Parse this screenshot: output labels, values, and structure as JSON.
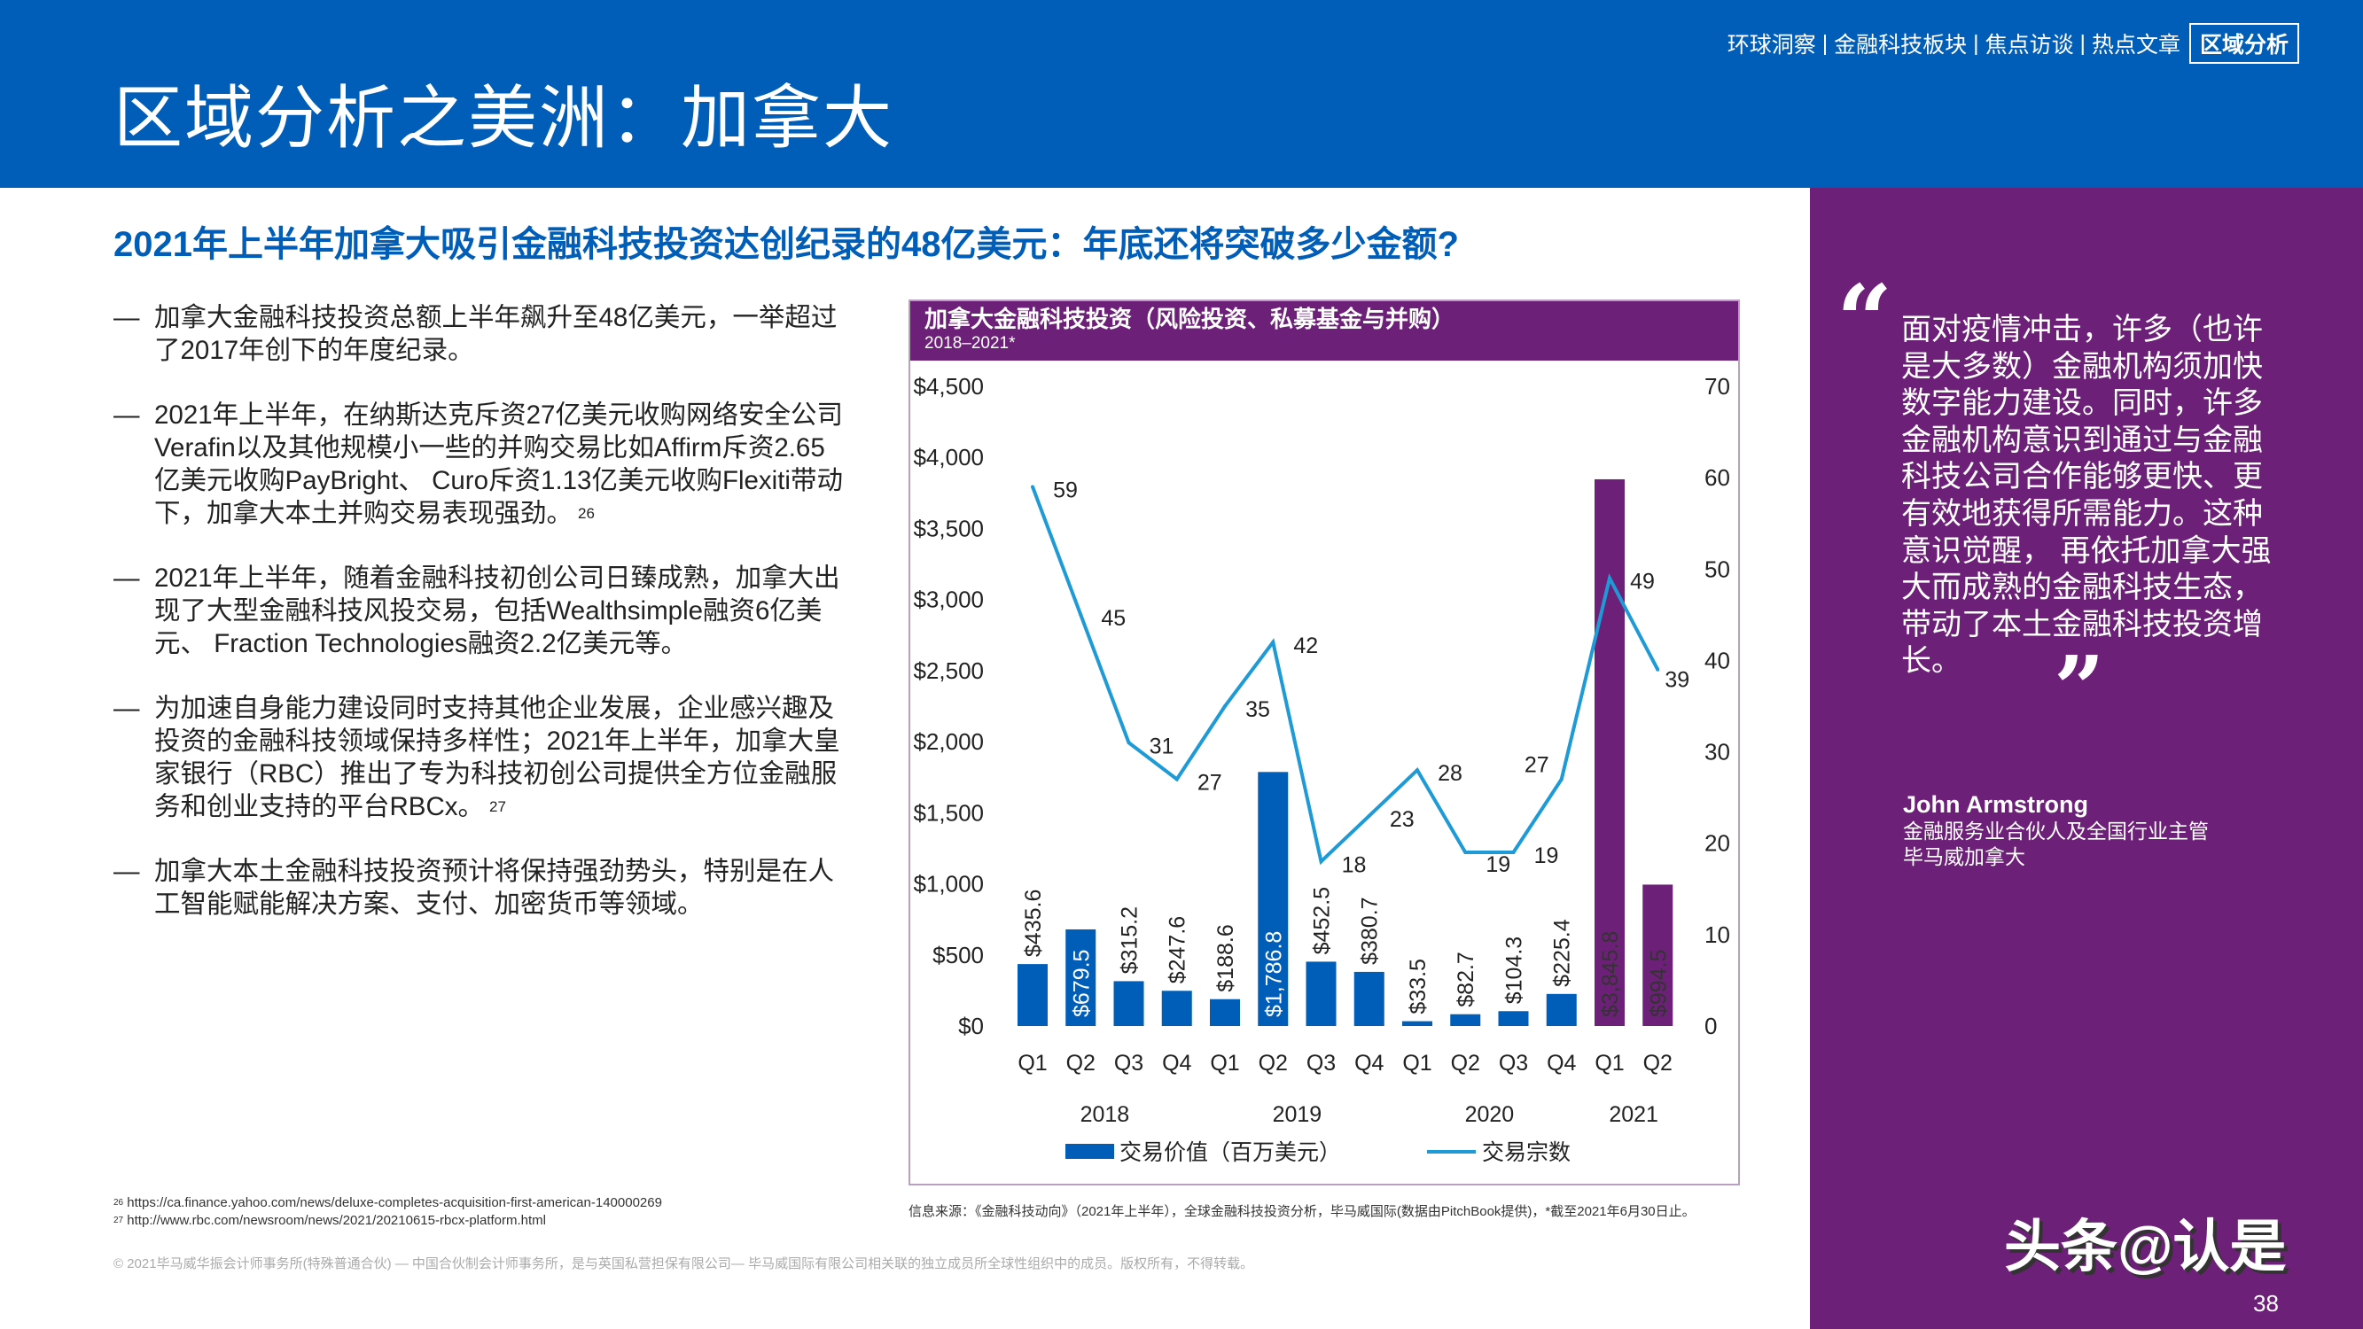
{
  "header": {
    "title": "区域分析之美洲：加拿大",
    "nav": [
      "环球洞察",
      "金融科技板块",
      "焦点访谈",
      "热点文章"
    ],
    "nav_separator": " | ",
    "nav_active": "区域分析"
  },
  "subtitle": "2021年上半年加拿大吸引金融科技投资达创纪录的48亿美元：年底还将突破多少金额?",
  "bullets": [
    {
      "dash": "—",
      "text": "加拿大金融科技投资总额上半年飙升至48亿美元，一举超过了2017年创下的年度纪录。",
      "ref": ""
    },
    {
      "dash": "—",
      "text": "2021年上半年，在纳斯达克斥资27亿美元收购网络安全公司Verafin以及其他规模小一些的并购交易比如Affirm斥资2.65亿美元收购PayBright、 Curo斥资1.13亿美元收购Flexiti带动下，加拿大本土并购交易表现强劲。",
      "ref": "26"
    },
    {
      "dash": "—",
      "text": "2021年上半年，随着金融科技初创公司日臻成熟，加拿大出现了大型金融科技风投交易，包括Wealthsimple融资6亿美元、 Fraction Technologies融资2.2亿美元等。",
      "ref": ""
    },
    {
      "dash": "—",
      "text": "为加速自身能力建设同时支持其他企业发展，企业感兴趣及投资的金融科技领域保持多样性；2021年上半年，加拿大皇家银行（RBC）推出了专为科技初创公司提供全方位金融服务和创业支持的平台RBCx。",
      "ref": "27"
    },
    {
      "dash": "—",
      "text": "加拿大本土金融科技投资预计将保持强劲势头，特别是在人工智能赋能解决方案、支付、加密货币等领域。",
      "ref": ""
    }
  ],
  "chart_data": {
    "type": "bar",
    "title": "加拿大金融科技投资（风险投资、私募基金与并购）",
    "subtitle": "2018–2021*",
    "categories": [
      "Q1",
      "Q2",
      "Q3",
      "Q4",
      "Q1",
      "Q2",
      "Q3",
      "Q4",
      "Q1",
      "Q2",
      "Q3",
      "Q4",
      "Q1",
      "Q2"
    ],
    "years": [
      {
        "label": "2018",
        "from": 0,
        "to": 3
      },
      {
        "label": "2019",
        "from": 4,
        "to": 7
      },
      {
        "label": "2020",
        "from": 8,
        "to": 11
      },
      {
        "label": "2021",
        "from": 12,
        "to": 13
      }
    ],
    "series": [
      {
        "name": "交易价值（百万美元）",
        "type": "bar",
        "axis": "left",
        "values": [
          435.6,
          679.5,
          315.2,
          247.6,
          188.6,
          1786.8,
          452.5,
          380.7,
          33.5,
          82.7,
          104.3,
          225.4,
          3845.8,
          994.5
        ],
        "labels": [
          "$435.6",
          "$679.5",
          "$315.2",
          "$247.6",
          "$188.6",
          "$1,786.8",
          "$452.5",
          "$380.7",
          "$33.5",
          "$82.7",
          "$104.3",
          "$225.4",
          "$3,845.8",
          "$994.5"
        ]
      },
      {
        "name": "交易宗数",
        "type": "line",
        "axis": "right",
        "values": [
          59,
          45,
          31,
          27,
          35,
          42,
          18,
          23,
          28,
          19,
          19,
          27,
          49,
          39
        ]
      }
    ],
    "y_left": {
      "range": [
        0,
        4500
      ],
      "ticks": [
        "$0",
        "$500",
        "$1,000",
        "$1,500",
        "$2,000",
        "$2,500",
        "$3,000",
        "$3,500",
        "$4,000",
        "$4,500"
      ]
    },
    "y_right": {
      "range": [
        0,
        70
      ],
      "ticks": [
        "0",
        "10",
        "20",
        "30",
        "40",
        "50",
        "60",
        "70"
      ]
    },
    "grid": false,
    "legend": "bottom",
    "colors": {
      "bar": "#005eb8",
      "bar_2021": "#6d2077",
      "line": "#1e9ad6"
    }
  },
  "footnotes": [
    {
      "num": "26",
      "text": "https://ca.finance.yahoo.com/news/deluxe-completes-acquisition-first-american-140000269"
    },
    {
      "num": "27",
      "text": "http://www.rbc.com/newsroom/news/2021/20210615-rbcx-platform.html"
    }
  ],
  "source": "信息来源：《金融科技动向》（2021年上半年），全球金融科技投资分析，毕马威国际(数据由PitchBook提供)，*截至2021年6月30日止。",
  "copyright": "© 2021毕马威华振会计师事务所(特殊普通合伙) — 中国合伙制会计师事务所，是与英国私营担保有限公司— 毕马威国际有限公司相关联的独立成员所全球性组织中的成员。版权所有，不得转载。",
  "quote": {
    "open_mark": "“",
    "text": "面对疫情冲击，许多（也许是大多数）金融机构须加快数字能力建设。同时，许多金融机构意识到通过与金融科技公司合作能够更快、更有效地获得所需能力。这种意识觉醒， 再依托加拿大强大而成熟的金融科技生态，带动了本土金融科技投资增长。",
    "close_mark": "”",
    "author": "John Armstrong",
    "role": "金融服务业合伙人及全国行业主管",
    "org": "毕马威加拿大"
  },
  "watermark": "头条@认是",
  "page_number": "38",
  "colors": {
    "brand_blue": "#005eb8",
    "brand_purple": "#6d2077"
  }
}
